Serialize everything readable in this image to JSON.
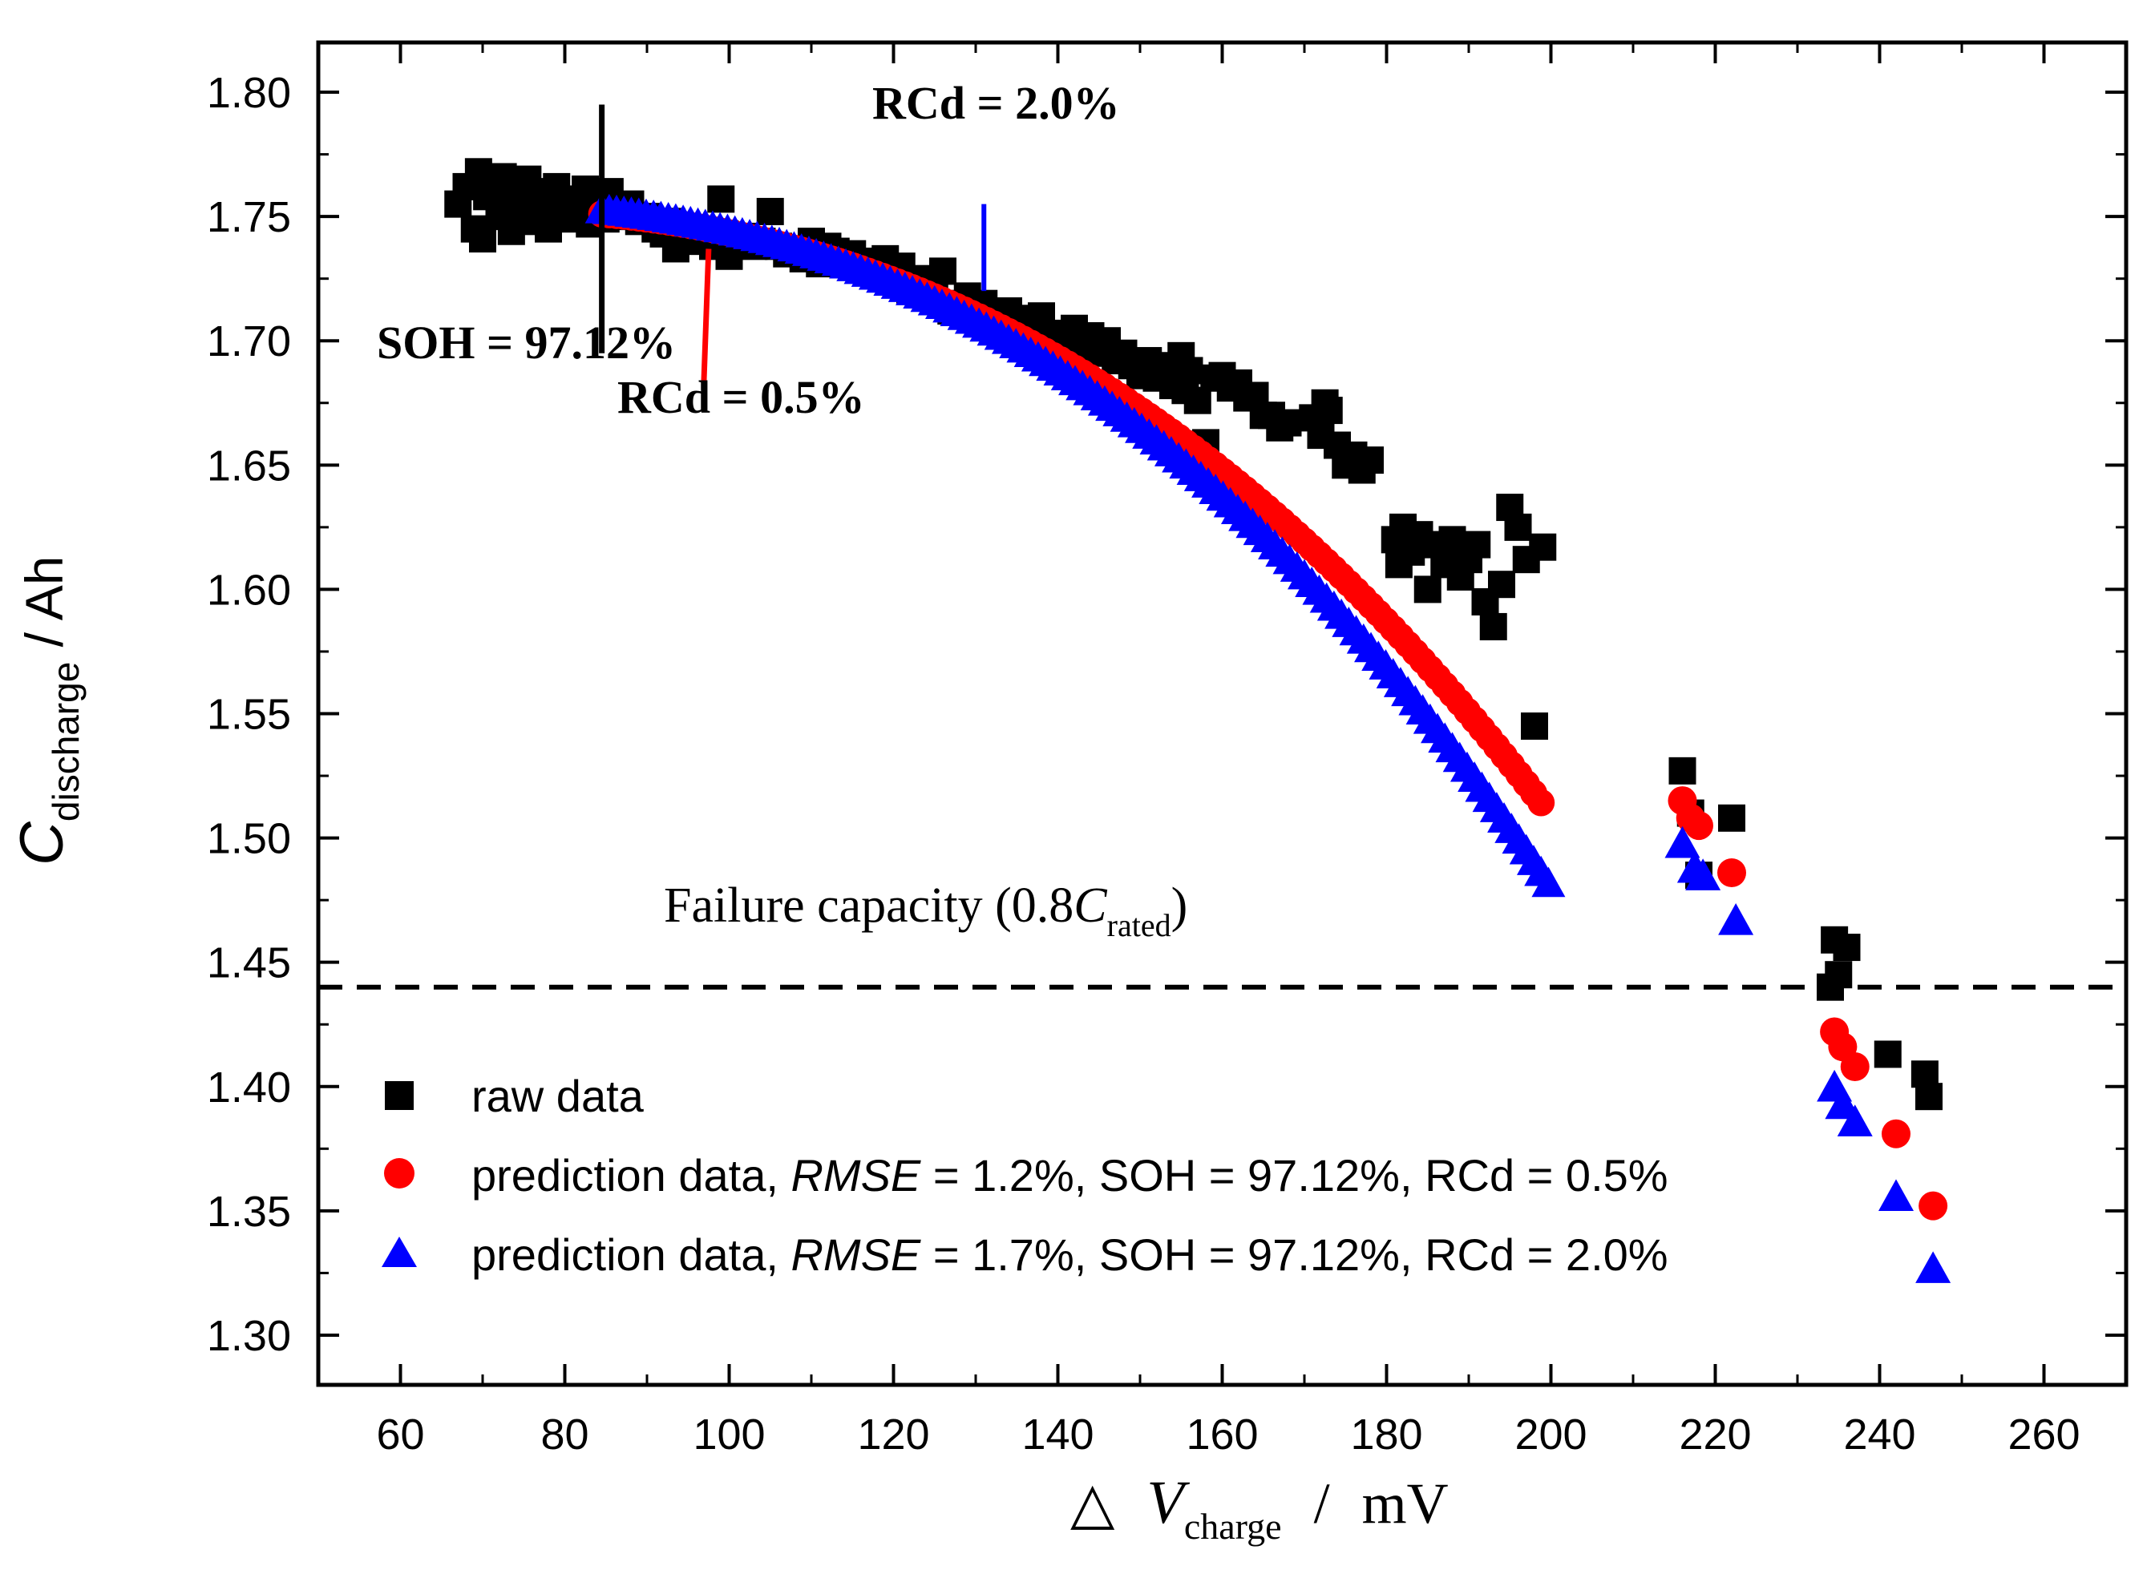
{
  "chart_data": {
    "type": "scatter",
    "xlabel": {
      "prefix": "△",
      "var": "V",
      "sub": "charge",
      "sep": "/",
      "unit": "mV"
    },
    "ylabel": {
      "var": "C",
      "sub": "discharge",
      "unit": " / Ah"
    },
    "xlim": [
      50,
      270
    ],
    "ylim": [
      1.28,
      1.82
    ],
    "x_ticks": [
      "60",
      "80",
      "100",
      "120",
      "140",
      "160",
      "180",
      "200",
      "220",
      "240",
      "260"
    ],
    "y_ticks": [
      "1.30",
      "1.35",
      "1.40",
      "1.45",
      "1.50",
      "1.55",
      "1.60",
      "1.65",
      "1.70",
      "1.75",
      "1.80"
    ],
    "legend": {
      "position": "bottom-left",
      "raw": "raw data",
      "pred1_prefix": "prediction data, ",
      "pred1_rmse_label": "RMSE",
      "pred1_suffix": " = 1.2%, SOH = 97.12%, RCd = 0.5%",
      "pred2_prefix": "prediction data, ",
      "pred2_rmse_label": "RMSE",
      "pred2_suffix": " = 1.7%, SOH = 97.12%, RCd = 2.0%"
    },
    "failure_line": {
      "y": 1.44,
      "label_prefix": "Failure capacity (0.8",
      "label_var": "C",
      "label_sub": "rated",
      "label_suffix": ")"
    },
    "annotations": {
      "soh": {
        "text": "SOH = 97.12%",
        "x": 84.5,
        "y_range": [
          1.695,
          1.795
        ]
      },
      "rcd05": {
        "text": "RCd = 0.5%",
        "x": 97.5,
        "y_range": [
          1.683,
          1.737
        ]
      },
      "rcd20": {
        "text": "RCd = 2.0%",
        "x": 131,
        "y_range": [
          1.72,
          1.755
        ]
      }
    },
    "colors": {
      "raw": "#000000",
      "pred1": "#ff0000",
      "pred2": "#0000ff",
      "black_line": "#000000",
      "red_line": "#ff0000",
      "blue_line": "#0000ff"
    },
    "series": [
      {
        "name": "raw data",
        "marker": "square",
        "points": [
          [
            67,
            1.755
          ],
          [
            68,
            1.762
          ],
          [
            69,
            1.745
          ],
          [
            69.5,
            1.768
          ],
          [
            70,
            1.741
          ],
          [
            70.5,
            1.758
          ],
          [
            71,
            1.763
          ],
          [
            72,
            1.75
          ],
          [
            72.5,
            1.766
          ],
          [
            73,
            1.754
          ],
          [
            73.5,
            1.744
          ],
          [
            74,
            1.762
          ],
          [
            75,
            1.756
          ],
          [
            75.5,
            1.765
          ],
          [
            76,
            1.748
          ],
          [
            77,
            1.76
          ],
          [
            77.5,
            1.752
          ],
          [
            78,
            1.745
          ],
          [
            79,
            1.762
          ],
          [
            80,
            1.756
          ],
          [
            80.5,
            1.749
          ],
          [
            81,
            1.757
          ],
          [
            82,
            1.751
          ],
          [
            82.5,
            1.761
          ],
          [
            83,
            1.747
          ],
          [
            84,
            1.754
          ],
          [
            85,
            1.749
          ],
          [
            85.5,
            1.76
          ],
          [
            86,
            1.752
          ],
          [
            87,
            1.75
          ],
          [
            88,
            1.755
          ],
          [
            89,
            1.748
          ],
          [
            90,
            1.75
          ],
          [
            91,
            1.745
          ],
          [
            92,
            1.743
          ],
          [
            93,
            1.748
          ],
          [
            93.5,
            1.737
          ],
          [
            94,
            1.745
          ],
          [
            95,
            1.742
          ],
          [
            96,
            1.74
          ],
          [
            97,
            1.743
          ],
          [
            98,
            1.738
          ],
          [
            99,
            1.757
          ],
          [
            99.5,
            1.743
          ],
          [
            100,
            1.734
          ],
          [
            101,
            1.74
          ],
          [
            102,
            1.742
          ],
          [
            103,
            1.738
          ],
          [
            104,
            1.74
          ],
          [
            105,
            1.752
          ],
          [
            106,
            1.738
          ],
          [
            107,
            1.735
          ],
          [
            108,
            1.737
          ],
          [
            109,
            1.733
          ],
          [
            110,
            1.74
          ],
          [
            111,
            1.731
          ],
          [
            112,
            1.738
          ],
          [
            113,
            1.736
          ],
          [
            114,
            1.733
          ],
          [
            115,
            1.735
          ],
          [
            116,
            1.73
          ],
          [
            117,
            1.732
          ],
          [
            118,
            1.728
          ],
          [
            119,
            1.733
          ],
          [
            120,
            1.725
          ],
          [
            121,
            1.73
          ],
          [
            122,
            1.72
          ],
          [
            123,
            1.722
          ],
          [
            124,
            1.725
          ],
          [
            125,
            1.72
          ],
          [
            126,
            1.728
          ],
          [
            127,
            1.712
          ],
          [
            128,
            1.715
          ],
          [
            129,
            1.718
          ],
          [
            130,
            1.712
          ],
          [
            131,
            1.715
          ],
          [
            132,
            1.711
          ],
          [
            133,
            1.708
          ],
          [
            134,
            1.712
          ],
          [
            135,
            1.705
          ],
          [
            136,
            1.709
          ],
          [
            137,
            1.703
          ],
          [
            138,
            1.71
          ],
          [
            139,
            1.7
          ],
          [
            140,
            1.703
          ],
          [
            141,
            1.698
          ],
          [
            142,
            1.705
          ],
          [
            143,
            1.697
          ],
          [
            144,
            1.702
          ],
          [
            145,
            1.695
          ],
          [
            146,
            1.7
          ],
          [
            147,
            1.692
          ],
          [
            148,
            1.695
          ],
          [
            149,
            1.69
          ],
          [
            150,
            1.686
          ],
          [
            151,
            1.692
          ],
          [
            152,
            1.685
          ],
          [
            153,
            1.69
          ],
          [
            154,
            1.682
          ],
          [
            155,
            1.694
          ],
          [
            155.5,
            1.68
          ],
          [
            156,
            1.688
          ],
          [
            157,
            1.676
          ],
          [
            158,
            1.659
          ],
          [
            159,
            1.685
          ],
          [
            160,
            1.686
          ],
          [
            161,
            1.681
          ],
          [
            162,
            1.683
          ],
          [
            163,
            1.677
          ],
          [
            164,
            1.678
          ],
          [
            165,
            1.67
          ],
          [
            166,
            1.67
          ],
          [
            167,
            1.665
          ],
          [
            168,
            1.667
          ],
          [
            171,
            1.669
          ],
          [
            172,
            1.662
          ],
          [
            172.5,
            1.675
          ],
          [
            173,
            1.672
          ],
          [
            174,
            1.658
          ],
          [
            175,
            1.65
          ],
          [
            176,
            1.654
          ],
          [
            177,
            1.648
          ],
          [
            178,
            1.652
          ],
          [
            181,
            1.62
          ],
          [
            181.5,
            1.61
          ],
          [
            182,
            1.625
          ],
          [
            183,
            1.615
          ],
          [
            184,
            1.622
          ],
          [
            185,
            1.6
          ],
          [
            186,
            1.618
          ],
          [
            187,
            1.61
          ],
          [
            188,
            1.62
          ],
          [
            189,
            1.605
          ],
          [
            190,
            1.612
          ],
          [
            191,
            1.618
          ],
          [
            192,
            1.595
          ],
          [
            193,
            1.585
          ],
          [
            194,
            1.602
          ],
          [
            195,
            1.633
          ],
          [
            196,
            1.625
          ],
          [
            197,
            1.612
          ],
          [
            198,
            1.545
          ],
          [
            199,
            1.617
          ],
          [
            216,
            1.527
          ],
          [
            217,
            1.51
          ],
          [
            218,
            1.485
          ],
          [
            222,
            1.508
          ],
          [
            234,
            1.44
          ],
          [
            234.5,
            1.459
          ],
          [
            235,
            1.445
          ],
          [
            236,
            1.456
          ],
          [
            241,
            1.413
          ],
          [
            245.5,
            1.405
          ],
          [
            246,
            1.396
          ]
        ]
      },
      {
        "name": "prediction data, RMSE = 1.2%, SOH = 97.12%, RCd = 0.5%",
        "marker": "circle",
        "curve": {
          "x_start": 84.5,
          "x_end": 199,
          "step": 0.9
        },
        "points": [
          [
            216,
            1.515
          ],
          [
            217,
            1.508
          ],
          [
            218,
            1.505
          ],
          [
            222,
            1.486
          ],
          [
            234.5,
            1.422
          ],
          [
            235.5,
            1.416
          ],
          [
            237,
            1.408
          ],
          [
            242,
            1.381
          ],
          [
            246.5,
            1.352
          ]
        ]
      },
      {
        "name": "prediction data, RMSE = 1.7%, SOH = 97.12%, RCd = 2.0%",
        "marker": "triangle",
        "curve": {
          "x_start": 84.5,
          "x_end": 200,
          "step": 0.9
        },
        "points": [
          [
            216,
            1.498
          ],
          [
            217.5,
            1.488
          ],
          [
            218.5,
            1.485
          ],
          [
            222.5,
            1.467
          ],
          [
            234.5,
            1.4
          ],
          [
            235.5,
            1.393
          ],
          [
            237,
            1.386
          ],
          [
            242,
            1.356
          ],
          [
            246.5,
            1.327
          ]
        ]
      }
    ]
  }
}
